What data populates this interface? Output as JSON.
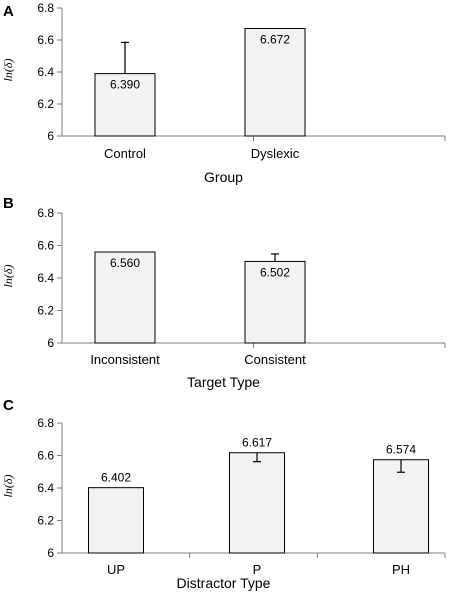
{
  "chart_data": [
    {
      "panel": "A",
      "type": "bar",
      "categories": [
        "Control",
        "Dyslexic"
      ],
      "values": [
        6.39,
        6.672
      ],
      "value_labels": [
        "6.390",
        "6.672"
      ],
      "error_upper": [
        6.585,
        null
      ],
      "error_lower": [
        null,
        null
      ],
      "value_label_position": [
        "inside",
        "inside"
      ],
      "ylabel": "ln(δ)",
      "xlabel": "Group",
      "ylim": [
        6,
        6.8
      ],
      "yticks": [
        "6",
        "6.2",
        "6.4",
        "6.6",
        "6.8"
      ],
      "bar_color": "#f2f2f2",
      "grid": false
    },
    {
      "panel": "B",
      "type": "bar",
      "categories": [
        "Inconsistent",
        "Consistent"
      ],
      "values": [
        6.56,
        6.502
      ],
      "value_labels": [
        "6.560",
        "6.502"
      ],
      "error_upper": [
        null,
        6.548
      ],
      "error_lower": [
        null,
        null
      ],
      "value_label_position": [
        "inside",
        "inside"
      ],
      "ylabel": "ln(δ)",
      "xlabel": "Target Type",
      "ylim": [
        6,
        6.8
      ],
      "yticks": [
        "6",
        "6.2",
        "6.4",
        "6.6",
        "6.8"
      ],
      "bar_color": "#f2f2f2",
      "grid": false
    },
    {
      "panel": "C",
      "type": "bar",
      "categories": [
        "UP",
        "P",
        "PH"
      ],
      "values": [
        6.402,
        6.617,
        6.574
      ],
      "value_labels": [
        "6.402",
        "6.617",
        "6.574"
      ],
      "error_upper": [
        null,
        null,
        null
      ],
      "error_lower": [
        null,
        6.562,
        6.497
      ],
      "value_label_position": [
        "above",
        "above",
        "above"
      ],
      "ylabel": "ln(δ)",
      "xlabel": "Distractor Type",
      "ylim": [
        6,
        6.8
      ],
      "yticks": [
        "6",
        "6.2",
        "6.4",
        "6.6",
        "6.8"
      ],
      "bar_color": "#f2f2f2",
      "grid": false
    }
  ]
}
